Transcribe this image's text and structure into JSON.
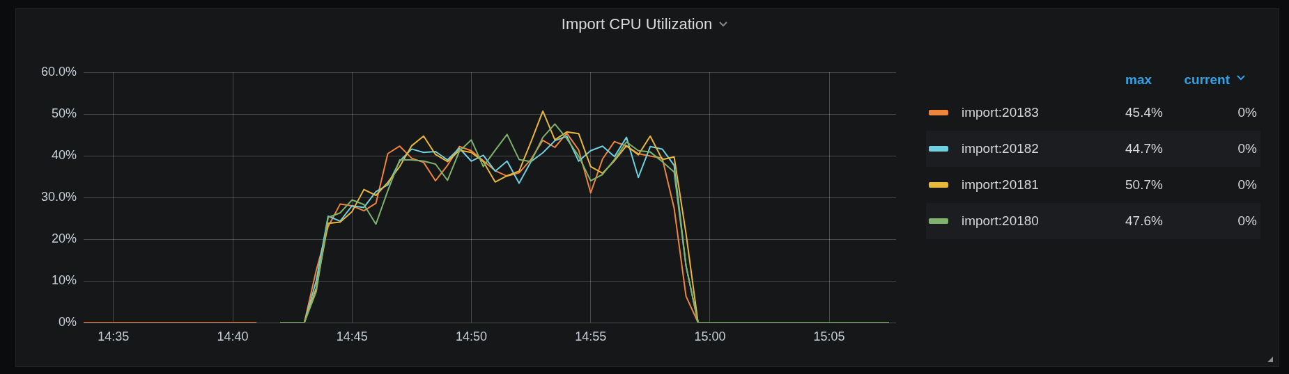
{
  "chart_data": {
    "type": "line",
    "title": "Import CPU Utilization",
    "x": [
      14.5625,
      14.6833,
      14.6917,
      14.7,
      14.7167,
      14.725,
      14.7333,
      14.7417,
      14.75,
      14.7583,
      14.7667,
      14.775,
      14.7833,
      14.7917,
      14.8,
      14.8083,
      14.8167,
      14.825,
      14.8333,
      14.8417,
      14.85,
      14.8583,
      14.8667,
      14.875,
      14.8833,
      14.8917,
      14.9,
      14.9083,
      14.9167,
      14.925,
      14.9333,
      14.9417,
      14.95,
      14.9583,
      14.9667,
      14.975,
      14.9833,
      14.9917,
      15.125
    ],
    "series": [
      {
        "name": "import:20183",
        "color": "#ef843c",
        "values": [
          0,
          0,
          null,
          0,
          0,
          12.5,
          23,
          28.4,
          28.0,
          26.8,
          28.6,
          40.5,
          42.3,
          39.4,
          38.4,
          34.0,
          37.7,
          42.2,
          41.2,
          38.8,
          36.4,
          35.1,
          35.9,
          39.1,
          43.7,
          42.0,
          45.4,
          41.4,
          31.1,
          39.2,
          43.4,
          42.3,
          40.5,
          39.9,
          39.4,
          27.4,
          6.3,
          0,
          0
        ]
      },
      {
        "name": "import:20182",
        "color": "#6ed0e0",
        "values": [
          null,
          null,
          null,
          0,
          0,
          10,
          25.5,
          24.3,
          28.0,
          27.6,
          31.4,
          33.0,
          38.7,
          41.6,
          40.8,
          41.0,
          39.0,
          41.8,
          38.7,
          40.1,
          36.3,
          38.7,
          33.4,
          38.6,
          40.7,
          43.6,
          44.7,
          38.7,
          41.2,
          42.3,
          39.8,
          44.4,
          34.8,
          42.2,
          41.6,
          37.7,
          13.6,
          0,
          0
        ]
      },
      {
        "name": "import:20181",
        "color": "#eab839",
        "values": [
          null,
          null,
          null,
          0,
          0,
          8.3,
          23.8,
          24.1,
          26.6,
          31.9,
          30.5,
          33.6,
          37.4,
          42.4,
          44.7,
          40.3,
          38.6,
          41.3,
          40.8,
          38.6,
          33.7,
          35.2,
          36.3,
          43.3,
          50.7,
          43.8,
          45.7,
          45.3,
          37.4,
          35.8,
          38.8,
          42.4,
          40.2,
          44.7,
          39.1,
          39.7,
          21.3,
          0,
          0
        ]
      },
      {
        "name": "import:20180",
        "color": "#7eb26d",
        "values": [
          null,
          null,
          null,
          0,
          0,
          7.4,
          25.2,
          26.3,
          29.4,
          28.3,
          23.6,
          31.6,
          39.0,
          39.0,
          38.7,
          38.0,
          34.1,
          41.1,
          43.8,
          37.4,
          41.3,
          45.1,
          39.1,
          38.6,
          44.4,
          47.6,
          44.1,
          39.9,
          34.0,
          35.5,
          39.1,
          43.3,
          41.2,
          40.9,
          38.6,
          36.1,
          13.6,
          0,
          0
        ]
      }
    ],
    "xlim": [
      14.5625,
      15.13
    ],
    "xticks": [
      {
        "value": 14.5833,
        "label": "14:35"
      },
      {
        "value": 14.6667,
        "label": "14:40"
      },
      {
        "value": 14.75,
        "label": "14:45"
      },
      {
        "value": 14.8333,
        "label": "14:50"
      },
      {
        "value": 14.9167,
        "label": "14:55"
      },
      {
        "value": 15,
        "label": "15:00"
      },
      {
        "value": 15.0833,
        "label": "15:05"
      }
    ],
    "ylim": [
      0,
      60
    ],
    "yticks": [
      {
        "value": 0,
        "label": "0%"
      },
      {
        "value": 10,
        "label": "10%"
      },
      {
        "value": 20,
        "label": "20%"
      },
      {
        "value": 30,
        "label": "30.0%"
      },
      {
        "value": 40,
        "label": "40%"
      },
      {
        "value": 50,
        "label": "50%"
      },
      {
        "value": 60,
        "label": "60.0%"
      }
    ],
    "annotations": [
      "max",
      "current",
      "45.4%",
      "0%",
      "44.7%",
      "0%",
      "50.7%",
      "0%",
      "47.6%",
      "0%"
    ],
    "grid": true,
    "legend": "right",
    "marker": "none",
    "line_style": "solid"
  }
}
